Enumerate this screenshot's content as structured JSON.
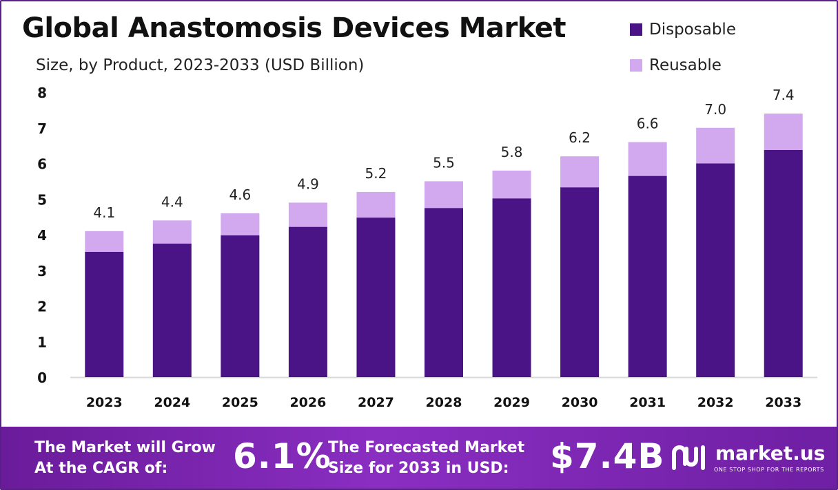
{
  "header": {
    "title": "Global Anastomosis Devices Market",
    "subtitle": "Size, by Product, 2023-2033 (USD Billion)"
  },
  "chart_data": {
    "type": "bar",
    "stacked": true,
    "categories": [
      "2023",
      "2024",
      "2025",
      "2026",
      "2027",
      "2028",
      "2029",
      "2030",
      "2031",
      "2032",
      "2033"
    ],
    "series": [
      {
        "name": "Disposable",
        "color": "#4a1486",
        "values": [
          3.52,
          3.75,
          3.98,
          4.22,
          4.48,
          4.75,
          5.02,
          5.33,
          5.65,
          6.0,
          6.38
        ]
      },
      {
        "name": "Reusable",
        "color": "#d2a8ee",
        "values": [
          0.58,
          0.65,
          0.62,
          0.68,
          0.72,
          0.75,
          0.78,
          0.87,
          0.95,
          1.0,
          1.02
        ]
      }
    ],
    "totals": [
      "4.1",
      "4.4",
      "4.6",
      "4.9",
      "5.2",
      "5.5",
      "5.8",
      "6.2",
      "6.6",
      "7.0",
      "7.4"
    ],
    "yticks": [
      "0",
      "1",
      "2",
      "3",
      "4",
      "5",
      "6",
      "7",
      "8"
    ],
    "ylim": [
      0,
      8
    ],
    "grid": false,
    "legend_position": "top-right"
  },
  "footer": {
    "cagr_line1": "The Market will Grow",
    "cagr_line2": "At the CAGR of:",
    "cagr_value": "6.1%",
    "forecast_line1": "The Forecasted Market",
    "forecast_line2": "Size for 2033 in USD:",
    "forecast_value": "$7.4B",
    "brand": "market.us",
    "tagline": "ONE STOP SHOP FOR THE REPORTS"
  }
}
